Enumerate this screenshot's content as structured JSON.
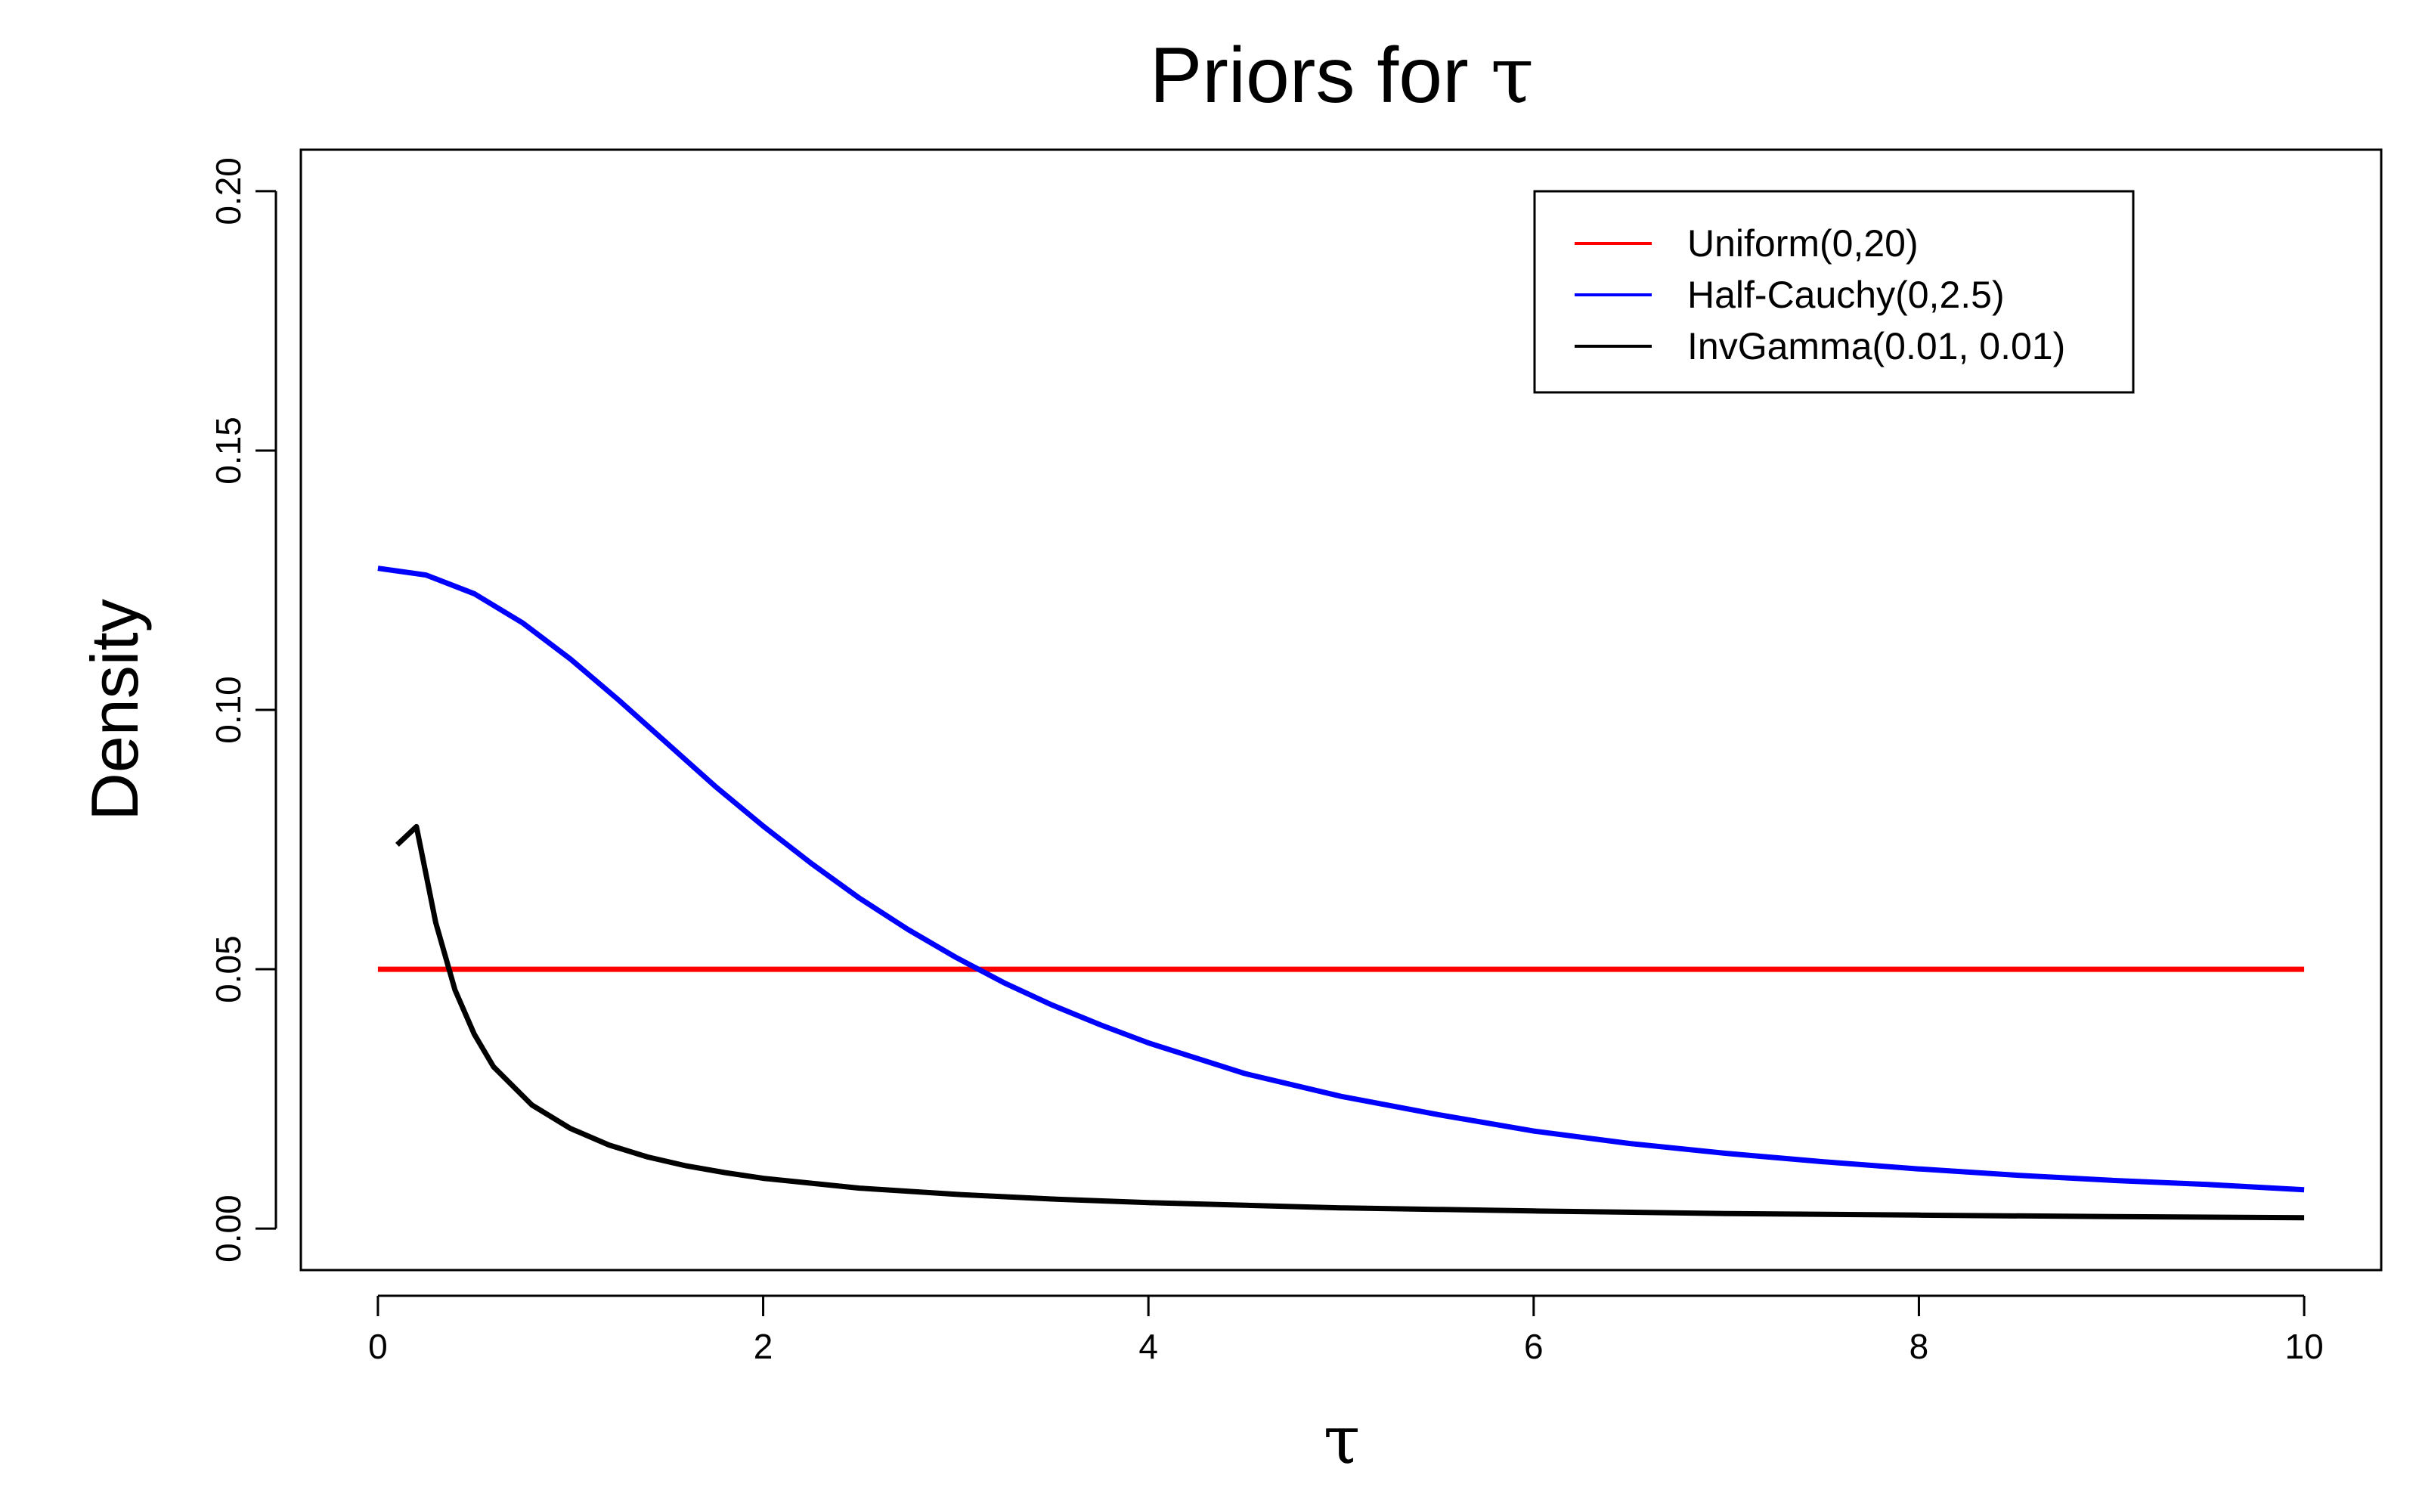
{
  "chart_data": {
    "type": "line",
    "title": "Priors for τ",
    "xlabel": "τ",
    "ylabel": "Density",
    "xlim": [
      -0.4,
      10.4
    ],
    "ylim": [
      -0.008,
      0.208
    ],
    "x_ticks": [
      0,
      2,
      4,
      6,
      8,
      10
    ],
    "x_tick_labels": [
      "0",
      "2",
      "4",
      "6",
      "8",
      "10"
    ],
    "y_ticks": [
      0.0,
      0.05,
      0.1,
      0.15,
      0.2
    ],
    "y_tick_labels": [
      "0.00",
      "0.05",
      "0.10",
      "0.15",
      "0.20"
    ],
    "grid": false,
    "legend_position": "top-right",
    "series": [
      {
        "name": "Uniform(0,20)",
        "color": "#ff0000",
        "x": [
          0,
          10
        ],
        "y": [
          0.05,
          0.05
        ]
      },
      {
        "name": "Half-Cauchy(0,2.5)",
        "color": "#0000ff",
        "x": [
          0,
          0.25,
          0.5,
          0.75,
          1,
          1.25,
          1.5,
          1.75,
          2,
          2.25,
          2.5,
          2.75,
          3,
          3.25,
          3.5,
          3.75,
          4,
          4.5,
          5,
          5.5,
          6,
          6.5,
          7,
          7.5,
          8,
          8.5,
          9,
          9.5,
          10
        ],
        "y": [
          0.1273,
          0.126,
          0.1224,
          0.1168,
          0.1098,
          0.1019,
          0.0936,
          0.0853,
          0.0776,
          0.0704,
          0.0637,
          0.0577,
          0.0523,
          0.0474,
          0.0431,
          0.0393,
          0.0358,
          0.0299,
          0.0255,
          0.022,
          0.0188,
          0.0164,
          0.0145,
          0.0129,
          0.0115,
          0.0103,
          0.0093,
          0.0085,
          0.0075
        ]
      },
      {
        "name": "InvGamma(0.01, 0.01)",
        "color": "#000000",
        "x": [
          0.1,
          0.2,
          0.3,
          0.4,
          0.5,
          0.6,
          0.8,
          1,
          1.2,
          1.4,
          1.6,
          1.8,
          2,
          2.5,
          3,
          3.5,
          4,
          5,
          6,
          7,
          8,
          9,
          10
        ],
        "y": [
          0.074,
          0.0775,
          0.059,
          0.046,
          0.0375,
          0.0312,
          0.0238,
          0.0193,
          0.0161,
          0.0138,
          0.0121,
          0.0108,
          0.0097,
          0.0078,
          0.0066,
          0.0057,
          0.005,
          0.004,
          0.0034,
          0.0029,
          0.0026,
          0.0023,
          0.0021
        ]
      }
    ]
  }
}
